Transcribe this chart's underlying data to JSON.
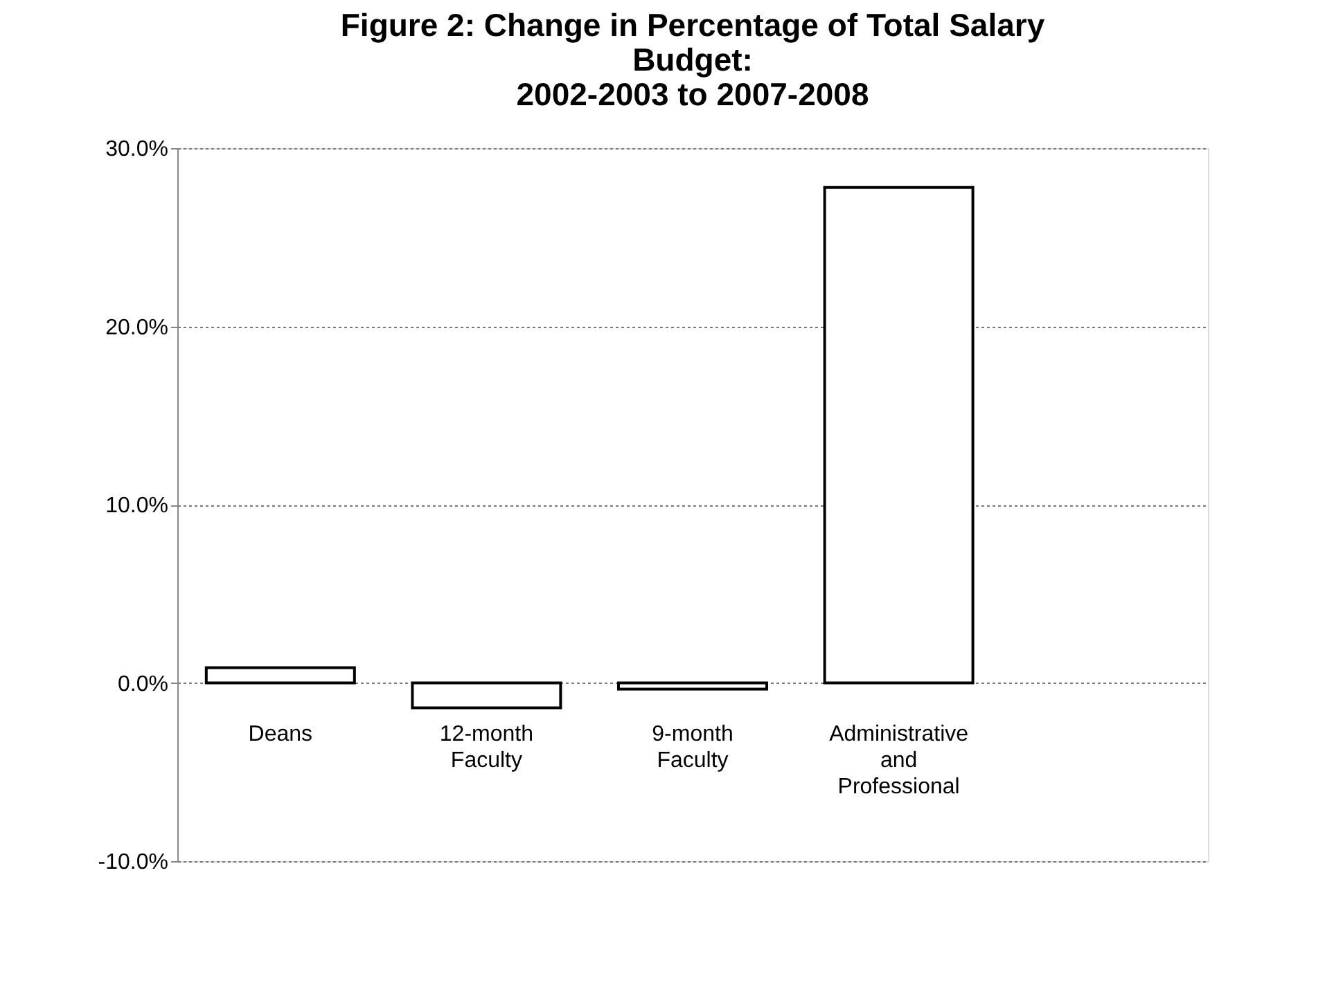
{
  "chart_data": {
    "type": "bar",
    "title": "Figure 2:  Change in Percentage of Total Salary\nBudget:\n2002-2003 to 2007-2008",
    "categories": [
      "Deans",
      "12-month\nFaculty",
      "9-month\nFaculty",
      "Administrative\nand\nProfessional",
      null
    ],
    "values": [
      0.85,
      -1.4,
      -0.35,
      27.8,
      null
    ],
    "color": "#ffffff",
    "ylim": [
      -10,
      30
    ],
    "yticks": [
      {
        "value": -10,
        "label": "-10.0%"
      },
      {
        "value": 0,
        "label": "0.0%"
      },
      {
        "value": 10,
        "label": "10.0%"
      },
      {
        "value": 20,
        "label": "20.0%"
      },
      {
        "value": 30,
        "label": "30.0%"
      }
    ],
    "grid": "y"
  }
}
